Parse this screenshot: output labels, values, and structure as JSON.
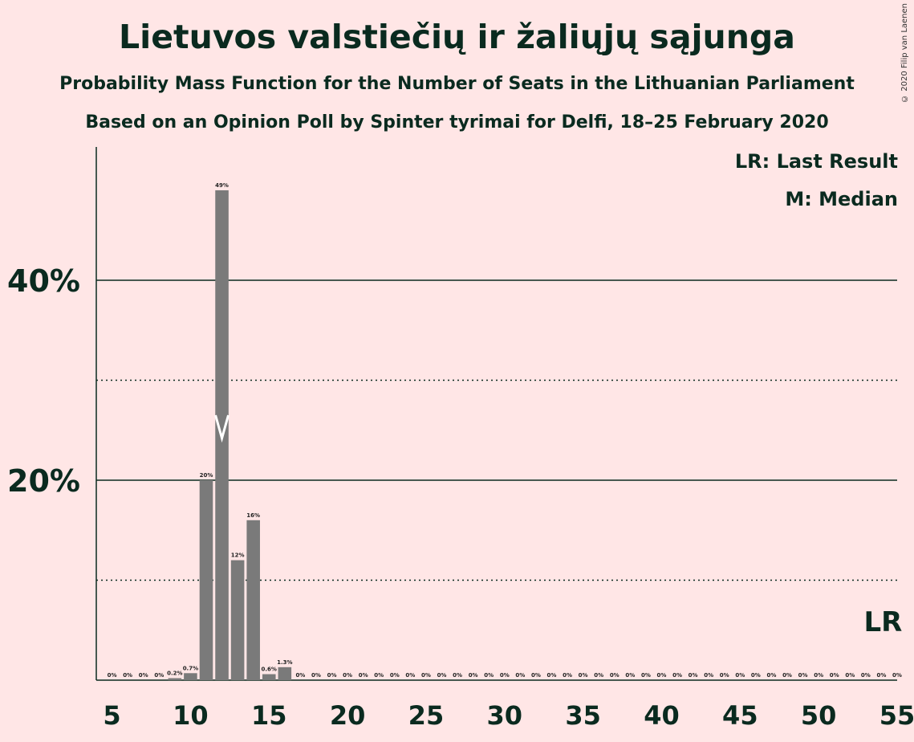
{
  "chart_data": {
    "type": "bar",
    "title": "Lietuvos valstiečių ir žaliųjų sąjunga",
    "subtitle": "Probability Mass Function for the Number of Seats in the Lithuanian Parliament",
    "subtitle2": "Based on an Opinion Poll by Spinter tyrimai for Delfi, 18–25 February 2020",
    "copyright": "© 2020 Filip van Laenen",
    "legend": {
      "lr": "LR: Last Result",
      "m": "M: Median",
      "placement": "top-right"
    },
    "x": [
      5,
      6,
      7,
      8,
      9,
      10,
      11,
      12,
      13,
      14,
      15,
      16,
      17,
      18,
      19,
      20,
      21,
      22,
      23,
      24,
      25,
      26,
      27,
      28,
      29,
      30,
      31,
      32,
      33,
      34,
      35,
      36,
      37,
      38,
      39,
      40,
      41,
      42,
      43,
      44,
      45,
      46,
      47,
      48,
      49,
      50,
      51,
      52,
      53,
      54,
      55
    ],
    "values": [
      0,
      0,
      0,
      0,
      0.2,
      0.7,
      20,
      49,
      12,
      16,
      0.6,
      1.3,
      0,
      0,
      0,
      0,
      0,
      0,
      0,
      0,
      0,
      0,
      0,
      0,
      0,
      0,
      0,
      0,
      0,
      0,
      0,
      0,
      0,
      0,
      0,
      0,
      0,
      0,
      0,
      0,
      0,
      0,
      0,
      0,
      0,
      0,
      0,
      0,
      0,
      0,
      0
    ],
    "labels": [
      "0%",
      "0%",
      "0%",
      "0%",
      "0.2%",
      "0.7%",
      "20%",
      "49%",
      "12%",
      "16%",
      "0.6%",
      "1.3%",
      "0%",
      "0%",
      "0%",
      "0%",
      "0%",
      "0%",
      "0%",
      "0%",
      "0%",
      "0%",
      "0%",
      "0%",
      "0%",
      "0%",
      "0%",
      "0%",
      "0%",
      "0%",
      "0%",
      "0%",
      "0%",
      "0%",
      "0%",
      "0%",
      "0%",
      "0%",
      "0%",
      "0%",
      "0%",
      "0%",
      "0%",
      "0%",
      "0%",
      "0%",
      "0%",
      "0%",
      "0%",
      "0%",
      "0%"
    ],
    "xticks": [
      5,
      10,
      15,
      20,
      25,
      30,
      35,
      40,
      45,
      50,
      55
    ],
    "yticks": [
      {
        "v": 20,
        "label": "20%"
      },
      {
        "v": 40,
        "label": "40%"
      }
    ],
    "ylim": [
      0,
      53
    ],
    "median": 12,
    "last_result": 54,
    "last_result_label": "LR",
    "grid": "solid at 20% and 40%, dotted at 10% and 30%",
    "colors": {
      "bar": "#7a7a7a",
      "background": "#ffe6e6",
      "text": "#0a2a1f"
    }
  }
}
